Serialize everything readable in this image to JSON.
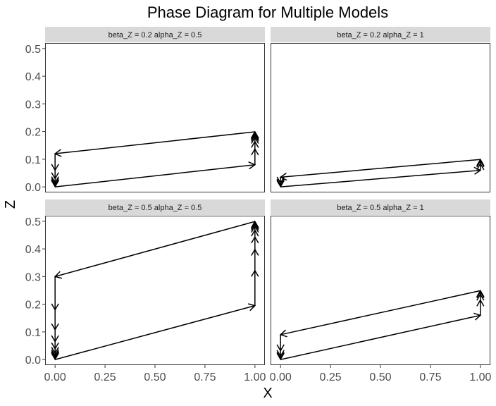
{
  "chart_data": {
    "type": "line",
    "title": "Phase Diagram for Multiple Models",
    "xlabel": "X",
    "ylabel": "Z",
    "xlim": [
      -0.05,
      1.05
    ],
    "ylim": [
      -0.02,
      0.52
    ],
    "x_ticks": [
      "0.00",
      "0.25",
      "0.50",
      "0.75",
      "1.00"
    ],
    "y_ticks": [
      "0.0",
      "0.1",
      "0.2",
      "0.3",
      "0.4",
      "0.5"
    ],
    "grid": false,
    "line_color": "#000000",
    "panels": [
      {
        "label": "beta_Z = 0.2 alpha_Z = 0.5",
        "z_high": 0.2,
        "segments": [
          [
            0,
            0.0,
            1,
            0.08
          ],
          [
            1,
            0.08,
            1,
            0.137
          ],
          [
            1,
            0.137,
            1,
            0.164
          ],
          [
            1,
            0.164,
            1,
            0.179
          ],
          [
            1,
            0.179,
            1,
            0.187
          ],
          [
            1,
            0.187,
            1,
            0.192
          ],
          [
            1,
            0.192,
            1,
            0.195
          ],
          [
            1,
            0.195,
            1,
            0.197
          ],
          [
            1,
            0.197,
            1,
            0.198
          ],
          [
            1,
            0.198,
            1,
            0.199
          ],
          [
            1,
            0.199,
            0,
            0.12
          ],
          [
            0,
            0.12,
            0,
            0.06
          ],
          [
            0,
            0.06,
            0,
            0.03
          ],
          [
            0,
            0.03,
            0,
            0.015
          ],
          [
            0,
            0.015,
            0,
            0.008
          ],
          [
            0,
            0.008,
            0,
            0.004
          ],
          [
            0,
            0.004,
            0,
            0.002
          ],
          [
            0,
            0.002,
            0,
            0.001
          ]
        ]
      },
      {
        "label": "beta_Z = 0.2 alpha_Z = 1",
        "z_high": 0.1,
        "segments": [
          [
            0,
            0.0,
            1,
            0.06
          ],
          [
            1,
            0.06,
            1,
            0.084
          ],
          [
            1,
            0.084,
            1,
            0.094
          ],
          [
            1,
            0.094,
            1,
            0.098
          ],
          [
            1,
            0.098,
            1,
            0.099
          ],
          [
            1,
            0.099,
            0,
            0.035
          ],
          [
            0,
            0.035,
            0,
            0.014
          ],
          [
            0,
            0.014,
            0,
            0.006
          ],
          [
            0,
            0.006,
            0,
            0.002
          ],
          [
            0,
            0.002,
            0,
            0.001
          ]
        ]
      },
      {
        "label": "beta_Z = 0.5 alpha_Z = 0.5",
        "z_high": 0.5,
        "segments": [
          [
            0,
            0.0,
            1,
            0.195
          ],
          [
            1,
            0.195,
            1,
            0.322
          ],
          [
            1,
            0.322,
            1,
            0.398
          ],
          [
            1,
            0.398,
            1,
            0.443
          ],
          [
            1,
            0.443,
            1,
            0.468
          ],
          [
            1,
            0.468,
            1,
            0.482
          ],
          [
            1,
            0.482,
            1,
            0.49
          ],
          [
            1,
            0.49,
            1,
            0.495
          ],
          [
            1,
            0.495,
            1,
            0.497
          ],
          [
            1,
            0.497,
            1,
            0.499
          ],
          [
            1,
            0.499,
            0,
            0.3
          ],
          [
            0,
            0.3,
            0,
            0.18
          ],
          [
            0,
            0.18,
            0,
            0.108
          ],
          [
            0,
            0.108,
            0,
            0.065
          ],
          [
            0,
            0.065,
            0,
            0.039
          ],
          [
            0,
            0.039,
            0,
            0.023
          ],
          [
            0,
            0.023,
            0,
            0.014
          ],
          [
            0,
            0.014,
            0,
            0.008
          ],
          [
            0,
            0.008,
            0,
            0.005
          ],
          [
            0,
            0.005,
            0,
            0.003
          ],
          [
            0,
            0.003,
            0,
            0.001
          ]
        ]
      },
      {
        "label": "beta_Z = 0.5 alpha_Z = 1",
        "z_high": 0.25,
        "segments": [
          [
            0,
            0.0,
            1,
            0.16
          ],
          [
            1,
            0.16,
            1,
            0.215
          ],
          [
            1,
            0.215,
            1,
            0.236
          ],
          [
            1,
            0.236,
            1,
            0.245
          ],
          [
            1,
            0.245,
            1,
            0.248
          ],
          [
            1,
            0.248,
            1,
            0.249
          ],
          [
            1,
            0.249,
            0,
            0.09
          ],
          [
            0,
            0.09,
            0,
            0.032
          ],
          [
            0,
            0.032,
            0,
            0.012
          ],
          [
            0,
            0.012,
            0,
            0.004
          ],
          [
            0,
            0.004,
            0,
            0.001
          ]
        ]
      }
    ]
  }
}
